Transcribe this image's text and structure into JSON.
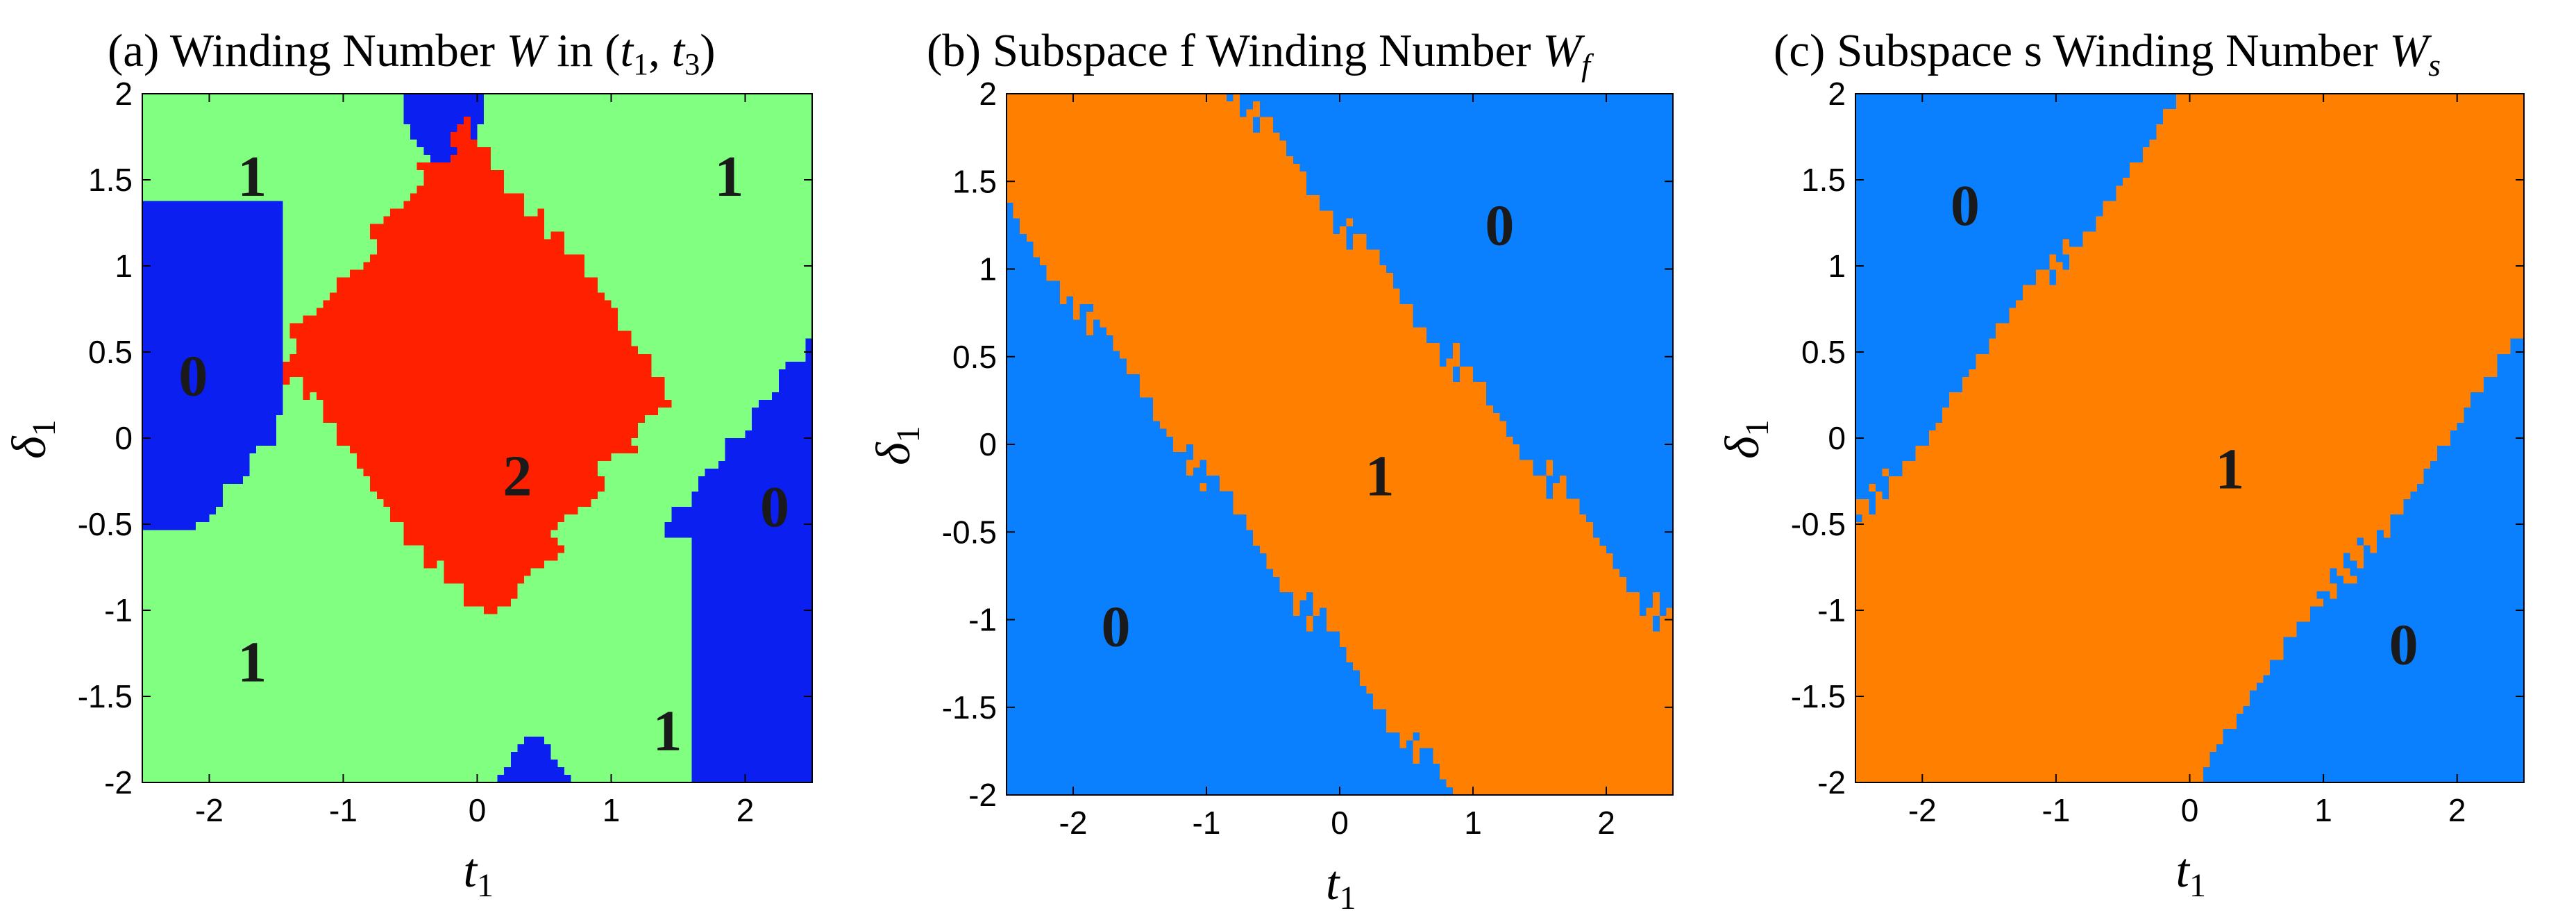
{
  "chart_data": [
    {
      "type": "heatmap",
      "title": "(a)  Winding  Number  W  in  (t1,  t3)",
      "title_parts": {
        "prefix": "(a)  Winding  Number  ",
        "sym": "W",
        "mid": "  in  (",
        "t": "t",
        "s1": "1",
        "comma": ",  ",
        "t3": "t",
        "s3": "3",
        "close": ")"
      },
      "xlabel": "t",
      "xlabel_sub": "1",
      "ylabel": "δ",
      "ylabel_sub": "1",
      "xlim": [
        -2.5,
        2.5
      ],
      "ylim": [
        -2,
        2
      ],
      "xticks": [
        -2,
        -1,
        0,
        1,
        2
      ],
      "yticks": [
        -2,
        -1.5,
        -1,
        -0.5,
        0,
        0.5,
        1,
        1.5,
        2
      ],
      "colors": {
        "0": "#0a1ff0",
        "1": "#80ff80",
        "2": "#ff2000"
      },
      "region_labels": [
        {
          "text": "1",
          "x": -1.68,
          "y": 1.52
        },
        {
          "text": "1",
          "x": 1.88,
          "y": 1.52
        },
        {
          "text": "0",
          "x": -2.12,
          "y": 0.36
        },
        {
          "text": "2",
          "x": 0.3,
          "y": -0.22
        },
        {
          "text": "0",
          "x": 2.22,
          "y": -0.4
        },
        {
          "text": "1",
          "x": -1.68,
          "y": -1.3
        },
        {
          "text": "1",
          "x": 1.42,
          "y": -1.7
        }
      ]
    },
    {
      "type": "heatmap",
      "title": "(b)  Subspace  f  Winding  Number  W_f",
      "title_parts": {
        "prefix": "(b)  Subspace  f  Winding  Number  ",
        "sym": "W",
        "sub": "f"
      },
      "xlabel": "t",
      "xlabel_sub": "1",
      "ylabel": "δ",
      "ylabel_sub": "1",
      "xlim": [
        -2.5,
        2.5
      ],
      "ylim": [
        -2,
        2
      ],
      "xticks": [
        -2,
        -1,
        0,
        1,
        2
      ],
      "yticks": [
        -2,
        -1.5,
        -1,
        -0.5,
        0,
        0.5,
        1,
        1.5,
        2
      ],
      "colors": {
        "0": "#0a80ff",
        "1": "#ff8000"
      },
      "region_labels": [
        {
          "text": "0",
          "x": 1.2,
          "y": 1.25
        },
        {
          "text": "1",
          "x": 0.3,
          "y": -0.18
        },
        {
          "text": "0",
          "x": -1.68,
          "y": -1.04
        }
      ]
    },
    {
      "type": "heatmap",
      "title": "(c)  Subspace  s  Winding  Number  W_s",
      "title_parts": {
        "prefix": "(c)  Subspace  s  Winding  Number  ",
        "sym": "W",
        "sub": "s"
      },
      "xlabel": "t",
      "xlabel_sub": "1",
      "ylabel": "δ",
      "ylabel_sub": "1",
      "xlim": [
        -2.5,
        2.5
      ],
      "ylim": [
        -2,
        2
      ],
      "xticks": [
        -2,
        -1,
        0,
        1,
        2
      ],
      "yticks": [
        -2,
        -1.5,
        -1,
        -0.5,
        0,
        0.5,
        1,
        1.5,
        2
      ],
      "colors": {
        "0": "#0a80ff",
        "1": "#ff8000"
      },
      "region_labels": [
        {
          "text": "0",
          "x": -1.68,
          "y": 1.35
        },
        {
          "text": "1",
          "x": 0.3,
          "y": -0.18
        },
        {
          "text": "0",
          "x": 1.6,
          "y": -1.2
        }
      ]
    }
  ]
}
